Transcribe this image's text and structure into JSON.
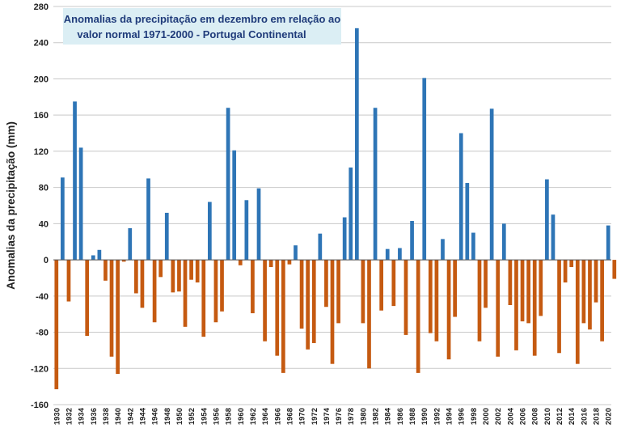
{
  "chart_data": {
    "type": "bar",
    "title_lines": [
      "Anomalias da precipitação em dezembro em relação ao",
      "valor normal   1971-2000 - Portugal Continental"
    ],
    "xlabel": "",
    "ylabel": "Anomalias da precipitação (mm)",
    "ylim": [
      -160,
      280
    ],
    "yticks": [
      -160,
      -120,
      -80,
      -40,
      0,
      40,
      80,
      120,
      160,
      200,
      240,
      280
    ],
    "grid": true,
    "x_start": 1930,
    "x_end": 2020,
    "x_tick_step": 2,
    "colors": {
      "positive": "#2e75b6",
      "negative": "#c55a11",
      "title_box": "#dbeef4"
    },
    "values": [
      -143,
      91,
      -46,
      175,
      124,
      -84,
      5,
      11,
      -23,
      -107,
      -126,
      -2,
      35,
      -37,
      -53,
      90,
      -69,
      -19,
      52,
      -36,
      -35,
      -74,
      -22,
      -25,
      -85,
      64,
      -69,
      -57,
      168,
      121,
      -6,
      66,
      -59,
      79,
      -90,
      -8,
      -106,
      -125,
      -5,
      16,
      -76,
      -99,
      -92,
      29,
      -52,
      -115,
      -70,
      47,
      102,
      256,
      -70,
      -120,
      168,
      -56,
      12,
      -51,
      13,
      -83,
      43,
      -125,
      201,
      -81,
      -90,
      23,
      -110,
      -63,
      140,
      85,
      30,
      -90,
      -53,
      167,
      -107,
      40,
      -50,
      -100,
      -68,
      -70,
      -106,
      -62,
      89,
      50,
      -103,
      -25,
      -8,
      -115,
      -70,
      -77,
      -47,
      -90,
      38,
      -21
    ]
  }
}
